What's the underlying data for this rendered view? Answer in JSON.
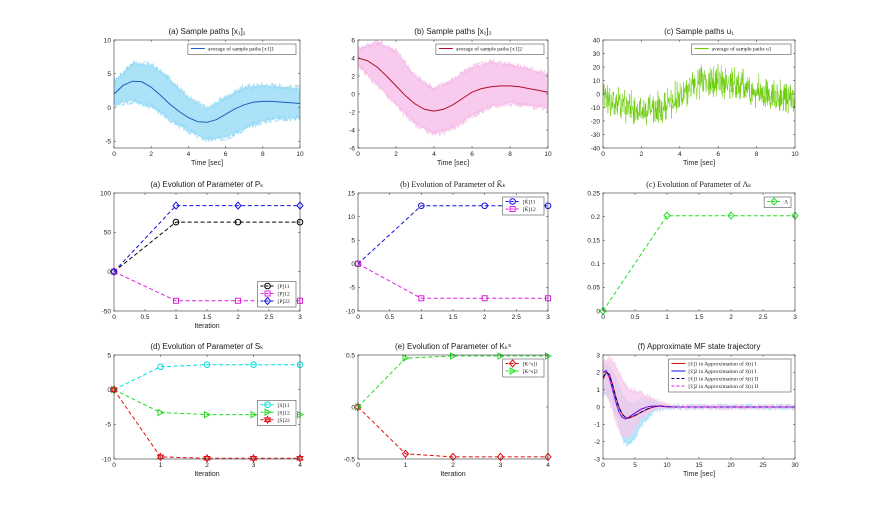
{
  "figure": {
    "panels": [
      {
        "id": "p1",
        "title": "(a) Sample paths [x₁]₁"
      },
      {
        "id": "p2",
        "title": "(b) Sample paths [x₁]₂"
      },
      {
        "id": "p3",
        "title": "(c) Sample paths u₁"
      },
      {
        "id": "p4",
        "title": "(a) Evolution of Parameter of Pₖ"
      },
      {
        "id": "p5",
        "title": "(b) Evolution of Parameter of K̃ₖ"
      },
      {
        "id": "p6",
        "title": "(c) Evolution of Parameter of Λₖ"
      },
      {
        "id": "p7",
        "title": "(d) Evolution of Parameter of Sₖ"
      },
      {
        "id": "p8",
        "title": "(e) Evolution of Parameter of Kₖˢ"
      },
      {
        "id": "p9",
        "title": "(f) Approximate MF state trajectory"
      }
    ]
  },
  "chart_data": [
    {
      "id": "p1",
      "type": "line",
      "title": "(a) Sample paths [x1]1",
      "xlabel": "Time [sec]",
      "ylabel": "",
      "xlim": [
        0,
        10
      ],
      "ylim": [
        -6,
        10
      ],
      "xticks": [
        0,
        2,
        4,
        6,
        8,
        10
      ],
      "yticks": [
        -5,
        0,
        5,
        10
      ],
      "legend": [
        "average of sample paths [x1]1"
      ],
      "legend_position": "top-right",
      "band": {
        "color": "#8fd8f5",
        "x": [
          0,
          1,
          2,
          3,
          4,
          5,
          6,
          7,
          8,
          9,
          10
        ],
        "lower": [
          0.5,
          1.0,
          0.2,
          -1.8,
          -3.5,
          -4.8,
          -4.5,
          -3.2,
          -2.0,
          -1.6,
          -1.6
        ],
        "upper": [
          3.8,
          6.6,
          6.3,
          4.2,
          1.5,
          -0.2,
          1.5,
          3.0,
          3.3,
          3.1,
          2.8
        ]
      },
      "series": [
        {
          "name": "average of sample paths [x1]1",
          "color": "#1f5fbf",
          "x": [
            0,
            0.5,
            1,
            1.5,
            2,
            2.5,
            3,
            3.5,
            4,
            4.5,
            5,
            5.5,
            6,
            6.5,
            7,
            7.5,
            8,
            8.5,
            9,
            9.5,
            10
          ],
          "y": [
            2.0,
            3.3,
            3.9,
            3.8,
            3.0,
            1.8,
            0.5,
            -0.6,
            -1.5,
            -2.1,
            -2.2,
            -1.8,
            -1.0,
            -0.2,
            0.4,
            0.8,
            0.9,
            0.9,
            0.8,
            0.7,
            0.6
          ]
        }
      ]
    },
    {
      "id": "p2",
      "type": "line",
      "title": "(b) Sample paths [x1]2",
      "xlabel": "Time [sec]",
      "ylabel": "",
      "xlim": [
        0,
        10
      ],
      "ylim": [
        -6,
        6
      ],
      "xticks": [
        0,
        2,
        4,
        6,
        8,
        10
      ],
      "yticks": [
        -6,
        -4,
        -2,
        0,
        2,
        4,
        6
      ],
      "legend": [
        "average of sample paths [x1]2"
      ],
      "legend_position": "top-right",
      "band": {
        "color": "#f5b8e8",
        "x": [
          0,
          1,
          2,
          3,
          4,
          5,
          6,
          7,
          8,
          9,
          10
        ],
        "lower": [
          3.2,
          1.0,
          -1.2,
          -3.3,
          -4.5,
          -3.8,
          -2.4,
          -1.4,
          -1.0,
          -1.3,
          -1.6
        ],
        "upper": [
          5.0,
          5.8,
          4.8,
          2.0,
          0.6,
          1.6,
          3.0,
          3.6,
          3.3,
          2.8,
          2.2
        ]
      },
      "series": [
        {
          "name": "average of sample paths [x1]2",
          "color": "#b0102a",
          "x": [
            0,
            0.5,
            1,
            1.5,
            2,
            2.5,
            3,
            3.5,
            4,
            4.5,
            5,
            5.5,
            6,
            6.5,
            7,
            7.5,
            8,
            8.5,
            9,
            9.5,
            10
          ],
          "y": [
            4.0,
            3.7,
            3.0,
            2.0,
            0.9,
            -0.2,
            -1.1,
            -1.7,
            -1.9,
            -1.7,
            -1.2,
            -0.5,
            0.2,
            0.6,
            0.8,
            0.9,
            0.9,
            0.8,
            0.6,
            0.4,
            0.2
          ]
        }
      ]
    },
    {
      "id": "p3",
      "type": "line",
      "title": "(c) Sample paths u1",
      "xlabel": "Time [sec]",
      "ylabel": "",
      "xlim": [
        0,
        10
      ],
      "ylim": [
        -40,
        40
      ],
      "xticks": [
        0,
        2,
        4,
        6,
        8,
        10
      ],
      "yticks": [
        -40,
        -30,
        -20,
        -10,
        0,
        10,
        20,
        30,
        40
      ],
      "legend": [
        "average of sample paths u1"
      ],
      "legend_position": "top-right",
      "noise": {
        "color": "#66cc00",
        "x": [
          0,
          1,
          2,
          3,
          4,
          5,
          6,
          7,
          8,
          9,
          10
        ],
        "center": [
          -2,
          -8,
          -12,
          -10,
          -2,
          8,
          10,
          6,
          2,
          -2,
          -6
        ],
        "amplitude": [
          12,
          14,
          14,
          14,
          15,
          15,
          15,
          15,
          15,
          14,
          14
        ]
      }
    },
    {
      "id": "p4",
      "type": "line",
      "title": "(a) Evolution of Parameter of Pk",
      "xlabel": "Iteration",
      "ylabel": "",
      "xlim": [
        0,
        3
      ],
      "ylim": [
        -50,
        100
      ],
      "xticks": [
        0,
        0.5,
        1,
        1.5,
        2,
        2.5,
        3
      ],
      "yticks": [
        -50,
        0,
        50,
        100
      ],
      "legend_position": "bottom-right",
      "dashed": true,
      "x": [
        0,
        1,
        2,
        3
      ],
      "series": [
        {
          "name": "[P]11",
          "color": "#000000",
          "marker": "circle",
          "values": [
            0,
            63,
            63,
            63
          ]
        },
        {
          "name": "[P]12",
          "color": "#e020e0",
          "marker": "square",
          "values": [
            0,
            -37,
            -37,
            -37
          ]
        },
        {
          "name": "[P]22",
          "color": "#1010e0",
          "marker": "diamond",
          "values": [
            0,
            84,
            84,
            84
          ]
        }
      ]
    },
    {
      "id": "p5",
      "type": "line",
      "title": "(b) Evolution of Parameter of K̃k",
      "xlabel": "",
      "ylabel": "",
      "xlim": [
        0,
        3
      ],
      "ylim": [
        -10,
        15
      ],
      "xticks": [
        0,
        0.5,
        1,
        1.5,
        2,
        2.5,
        3
      ],
      "yticks": [
        -10,
        -5,
        0,
        5,
        10,
        15
      ],
      "legend_position": "top-right",
      "dashed": true,
      "x": [
        0,
        1,
        2,
        3
      ],
      "series": [
        {
          "name": "[K̃]11",
          "color": "#1010e0",
          "marker": "circle",
          "values": [
            0,
            12.3,
            12.3,
            12.3
          ]
        },
        {
          "name": "[K̃]12",
          "color": "#e020e0",
          "marker": "square",
          "values": [
            0,
            -7.3,
            -7.3,
            -7.3
          ]
        }
      ]
    },
    {
      "id": "p6",
      "type": "line",
      "title": "(c) Evolution of Parameter of Λk",
      "xlabel": "",
      "ylabel": "",
      "xlim": [
        0,
        3
      ],
      "ylim": [
        0,
        0.25
      ],
      "xticks": [
        0,
        0.5,
        1,
        1.5,
        2,
        2.5,
        3
      ],
      "yticks": [
        0,
        0.05,
        0.1,
        0.15,
        0.2,
        0.25
      ],
      "legend_position": "top-right",
      "dashed": true,
      "x": [
        0,
        1,
        2,
        3
      ],
      "series": [
        {
          "name": "Λ",
          "color": "#22dd22",
          "marker": "diamond",
          "values": [
            0,
            0.202,
            0.202,
            0.202
          ]
        }
      ]
    },
    {
      "id": "p7",
      "type": "line",
      "title": "(d) Evolution of Parameter of Sk",
      "xlabel": "Iteration",
      "ylabel": "",
      "xlim": [
        0,
        4
      ],
      "ylim": [
        -10,
        5
      ],
      "xticks": [
        0,
        1,
        2,
        3,
        4
      ],
      "yticks": [
        -10,
        -5,
        0,
        5
      ],
      "legend_position": "right",
      "dashed": true,
      "x": [
        0,
        1,
        2,
        3,
        4
      ],
      "series": [
        {
          "name": "[S]11",
          "color": "#00dddd",
          "marker": "circle",
          "values": [
            0,
            3.3,
            3.6,
            3.6,
            3.6
          ]
        },
        {
          "name": "[S]12",
          "color": "#22dd22",
          "marker": "triangle-right",
          "values": [
            0,
            -3.3,
            -3.6,
            -3.6,
            -3.6
          ]
        },
        {
          "name": "[S]22",
          "color": "#e01010",
          "marker": "hexagram",
          "values": [
            0,
            -9.7,
            -9.9,
            -9.9,
            -9.9
          ]
        }
      ]
    },
    {
      "id": "p8",
      "type": "line",
      "title": "(e) Evolution of Parameter of Kk^s",
      "xlabel": "Iteration",
      "ylabel": "",
      "xlim": [
        0,
        4
      ],
      "ylim": [
        -0.5,
        0.5
      ],
      "xticks": [
        0,
        1,
        2,
        3,
        4
      ],
      "yticks": [
        -0.5,
        0,
        0.5
      ],
      "legend_position": "top-right",
      "dashed": true,
      "x": [
        0,
        1,
        2,
        3,
        4
      ],
      "series": [
        {
          "name": "[K^s]1",
          "color": "#e01010",
          "marker": "diamond",
          "values": [
            0,
            -0.45,
            -0.48,
            -0.48,
            -0.48
          ]
        },
        {
          "name": "[K^s]2",
          "color": "#22dd22",
          "marker": "triangle-right",
          "values": [
            0,
            0.47,
            0.49,
            0.49,
            0.49
          ]
        }
      ]
    },
    {
      "id": "p9",
      "type": "line",
      "title": "(f) Approximate MF state trajectory",
      "xlabel": "Time [sec]",
      "ylabel": "",
      "xlim": [
        0,
        30
      ],
      "ylim": [
        -3,
        3
      ],
      "xticks": [
        0,
        5,
        10,
        15,
        20,
        25,
        30
      ],
      "yticks": [
        -3,
        -2,
        -1,
        0,
        1,
        2,
        3
      ],
      "legend_position": "top-right",
      "bands": [
        {
          "color": "#9fdcf5",
          "x": [
            0,
            1,
            2,
            3,
            4,
            5,
            6,
            8,
            10,
            12,
            30
          ],
          "lower": [
            0.8,
            0.7,
            -0.4,
            -1.8,
            -2.2,
            -1.8,
            -1.0,
            -0.2,
            -0.05,
            0,
            0
          ],
          "upper": [
            2.4,
            2.3,
            1.8,
            0.8,
            0.2,
            0.2,
            0.4,
            0.3,
            0.05,
            0,
            0
          ]
        },
        {
          "color": "#f5c8ea",
          "x": [
            0,
            1,
            2,
            3,
            4,
            5,
            6,
            8,
            10,
            12,
            30
          ],
          "lower": [
            1.0,
            0.4,
            -0.8,
            -1.6,
            -1.7,
            -1.2,
            -0.6,
            -0.1,
            -0.02,
            0,
            0
          ],
          "upper": [
            2.6,
            2.8,
            2.4,
            1.6,
            1.0,
            0.9,
            0.8,
            0.4,
            0.1,
            0,
            0
          ]
        }
      ],
      "x": [
        0,
        0.5,
        1,
        1.5,
        2,
        2.5,
        3,
        3.5,
        4,
        5,
        6,
        7,
        8,
        9,
        10,
        11,
        12,
        14,
        16,
        20,
        25,
        30
      ],
      "series": [
        {
          "name": "[x̂]1 in Approximation of x̄(t) I",
          "color": "#e01010",
          "dash": "solid",
          "values": [
            1.6,
            2.0,
            1.9,
            1.3,
            0.6,
            0.0,
            -0.4,
            -0.6,
            -0.65,
            -0.5,
            -0.3,
            -0.12,
            0.02,
            0.05,
            0.03,
            0.0,
            0,
            0,
            0,
            0,
            0,
            0
          ]
        },
        {
          "name": "[x̂]2 in Approximation of x̄(t) I",
          "color": "#1010e0",
          "dash": "solid",
          "values": [
            2.0,
            2.1,
            1.7,
            1.0,
            0.3,
            -0.3,
            -0.6,
            -0.7,
            -0.6,
            -0.35,
            -0.12,
            0.02,
            0.06,
            0.04,
            0.01,
            0,
            0,
            0,
            0,
            0,
            0,
            0
          ]
        },
        {
          "name": "[x̂]1 in Approximation of x̄(t) II",
          "color": "#000080",
          "dash": "dashed",
          "values": [
            1.7,
            2.0,
            1.85,
            1.25,
            0.55,
            -0.05,
            -0.42,
            -0.6,
            -0.62,
            -0.48,
            -0.28,
            -0.1,
            0.02,
            0.05,
            0.03,
            0,
            0,
            0,
            0,
            0,
            0,
            0
          ]
        },
        {
          "name": "[x̂]2 in Approximation of x̄(t) II",
          "color": "#e020e0",
          "dash": "dashed",
          "values": [
            2.0,
            2.05,
            1.65,
            0.95,
            0.25,
            -0.3,
            -0.58,
            -0.68,
            -0.58,
            -0.33,
            -0.1,
            0.02,
            0.05,
            0.03,
            0.01,
            0,
            0,
            0,
            0,
            0,
            0,
            0
          ]
        }
      ]
    }
  ]
}
